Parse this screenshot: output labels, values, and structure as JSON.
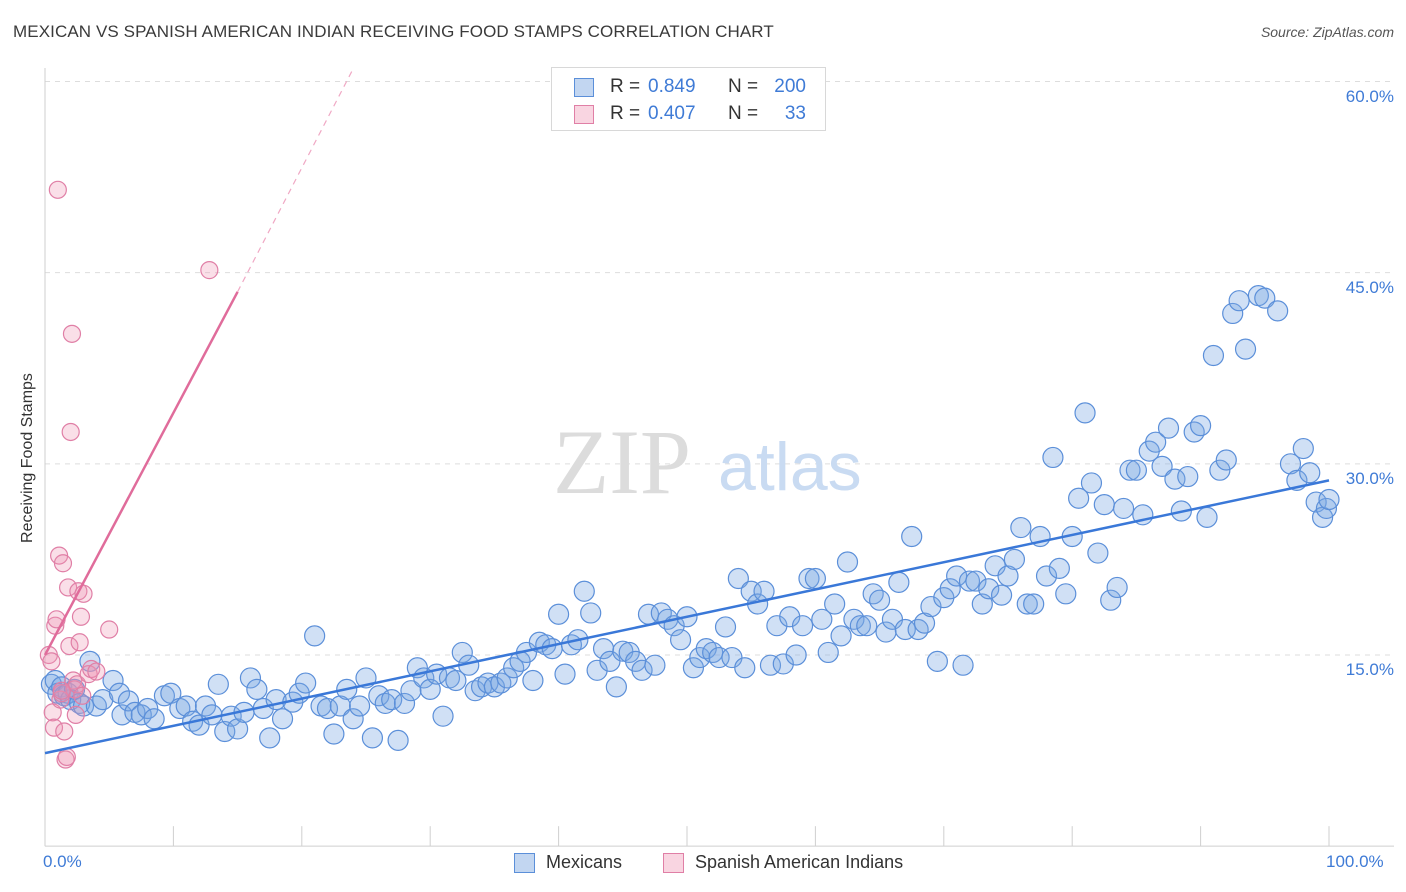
{
  "header": {
    "title": "MEXICAN VS SPANISH AMERICAN INDIAN RECEIVING FOOD STAMPS CORRELATION CHART",
    "source": "Source: ZipAtlas.com"
  },
  "watermark": {
    "zip": "ZIP",
    "atlas": "atlas"
  },
  "colors": {
    "blue": "#3a78d8",
    "blue_fill": "rgba(120,165,225,0.35)",
    "blue_stroke": "#5b8fd9",
    "pink": "#e06c9b",
    "pink_fill": "rgba(240,150,180,0.30)",
    "pink_stroke": "#e07fa6",
    "tick_text": "#3f7bd6"
  },
  "legend_top": {
    "rows": [
      {
        "r_label": "R =",
        "r_value": "0.849",
        "n_label": "N =",
        "n_value": "200",
        "color": "blue"
      },
      {
        "r_label": "R =",
        "r_value": "0.407",
        "n_label": "N =",
        "n_value": "33",
        "color": "pink"
      }
    ]
  },
  "legend_bottom": {
    "items": [
      {
        "label": "Mexicans",
        "color": "blue"
      },
      {
        "label": "Spanish American Indians",
        "color": "pink"
      }
    ]
  },
  "chart_data": {
    "type": "scatter",
    "title": "MEXICAN VS SPANISH AMERICAN INDIAN RECEIVING FOOD STAMPS CORRELATION CHART",
    "xlabel": "",
    "ylabel": "Receiving Food Stamps",
    "xlim": [
      0,
      100
    ],
    "ylim": [
      0,
      62
    ],
    "x_tick_labels": [
      "0.0%",
      "100.0%"
    ],
    "y_ticks": [
      15,
      30,
      45,
      60
    ],
    "y_tick_labels": [
      "15.0%",
      "30.0%",
      "45.0%",
      "60.0%"
    ],
    "grid": "dashed horizontal",
    "legend_position": "top-center",
    "series": [
      {
        "name": "Mexicans",
        "color": "blue",
        "r": 0.849,
        "n": 200,
        "trend": {
          "x": [
            0,
            100
          ],
          "y": [
            7.3,
            28.7
          ]
        },
        "points": [
          [
            0.5,
            12.7
          ],
          [
            0.8,
            13.0
          ],
          [
            1.0,
            12.0
          ],
          [
            1.3,
            12.5
          ],
          [
            1.5,
            11.8
          ],
          [
            1.8,
            12.0
          ],
          [
            2.0,
            11.5
          ],
          [
            2.3,
            12.3
          ],
          [
            2.7,
            11.2
          ],
          [
            3.0,
            11.0
          ],
          [
            3.5,
            14.5
          ],
          [
            4.0,
            11.0
          ],
          [
            4.5,
            11.5
          ],
          [
            5.3,
            13.0
          ],
          [
            5.8,
            12.0
          ],
          [
            6.0,
            10.3
          ],
          [
            6.5,
            11.4
          ],
          [
            7.0,
            10.5
          ],
          [
            7.5,
            10.3
          ],
          [
            8.0,
            10.8
          ],
          [
            8.5,
            10.0
          ],
          [
            9.3,
            11.8
          ],
          [
            9.8,
            12.0
          ],
          [
            10.5,
            10.8
          ],
          [
            11.0,
            11.0
          ],
          [
            11.5,
            9.8
          ],
          [
            12.0,
            9.5
          ],
          [
            12.5,
            11.0
          ],
          [
            13.0,
            10.3
          ],
          [
            13.5,
            12.7
          ],
          [
            14.0,
            9.0
          ],
          [
            14.5,
            10.2
          ],
          [
            15.0,
            9.2
          ],
          [
            15.5,
            10.5
          ],
          [
            16.0,
            13.2
          ],
          [
            16.5,
            12.3
          ],
          [
            17.0,
            10.8
          ],
          [
            17.5,
            8.5
          ],
          [
            18.0,
            11.5
          ],
          [
            18.5,
            10.0
          ],
          [
            19.3,
            11.3
          ],
          [
            19.8,
            12.0
          ],
          [
            20.3,
            12.8
          ],
          [
            21.0,
            16.5
          ],
          [
            21.5,
            11.0
          ],
          [
            22.0,
            10.8
          ],
          [
            22.5,
            8.8
          ],
          [
            23.0,
            11.0
          ],
          [
            23.5,
            12.3
          ],
          [
            24.0,
            10.0
          ],
          [
            24.5,
            11.0
          ],
          [
            25.0,
            13.2
          ],
          [
            25.5,
            8.5
          ],
          [
            26.0,
            11.8
          ],
          [
            26.5,
            11.2
          ],
          [
            27.0,
            11.5
          ],
          [
            27.5,
            8.3
          ],
          [
            28.0,
            11.2
          ],
          [
            28.5,
            12.2
          ],
          [
            29.0,
            14.0
          ],
          [
            29.5,
            13.2
          ],
          [
            30.0,
            12.3
          ],
          [
            30.5,
            13.5
          ],
          [
            31.0,
            10.2
          ],
          [
            31.5,
            13.2
          ],
          [
            32.0,
            13.0
          ],
          [
            32.5,
            15.2
          ],
          [
            33.0,
            14.2
          ],
          [
            33.5,
            12.2
          ],
          [
            34.0,
            12.5
          ],
          [
            34.5,
            12.8
          ],
          [
            35.0,
            12.5
          ],
          [
            35.5,
            12.8
          ],
          [
            36.0,
            13.2
          ],
          [
            36.5,
            14.0
          ],
          [
            37.0,
            14.5
          ],
          [
            37.5,
            15.2
          ],
          [
            38.0,
            13.0
          ],
          [
            38.5,
            16.0
          ],
          [
            39.0,
            15.8
          ],
          [
            39.5,
            15.5
          ],
          [
            40.0,
            18.2
          ],
          [
            40.5,
            13.5
          ],
          [
            41.0,
            15.8
          ],
          [
            41.5,
            16.2
          ],
          [
            42.0,
            20.0
          ],
          [
            42.5,
            18.3
          ],
          [
            43.0,
            13.8
          ],
          [
            43.5,
            15.5
          ],
          [
            44.0,
            14.5
          ],
          [
            44.5,
            12.5
          ],
          [
            45.0,
            15.3
          ],
          [
            45.5,
            15.2
          ],
          [
            46.0,
            14.5
          ],
          [
            46.5,
            13.8
          ],
          [
            47.0,
            18.2
          ],
          [
            47.5,
            14.2
          ],
          [
            48.0,
            18.3
          ],
          [
            48.5,
            17.8
          ],
          [
            49.0,
            17.3
          ],
          [
            49.5,
            16.2
          ],
          [
            50.0,
            18.0
          ],
          [
            50.5,
            14.0
          ],
          [
            51.0,
            14.8
          ],
          [
            51.5,
            15.5
          ],
          [
            52.0,
            15.2
          ],
          [
            52.5,
            14.8
          ],
          [
            53.0,
            17.2
          ],
          [
            53.5,
            14.8
          ],
          [
            54.0,
            21.0
          ],
          [
            54.5,
            14.0
          ],
          [
            55.0,
            20.0
          ],
          [
            55.5,
            19.0
          ],
          [
            56.0,
            20.0
          ],
          [
            56.5,
            14.2
          ],
          [
            57.0,
            17.3
          ],
          [
            57.5,
            14.3
          ],
          [
            58.0,
            18.0
          ],
          [
            58.5,
            15.0
          ],
          [
            59.0,
            17.3
          ],
          [
            59.5,
            21.0
          ],
          [
            60.0,
            21.0
          ],
          [
            60.5,
            17.8
          ],
          [
            61.0,
            15.2
          ],
          [
            61.5,
            19.0
          ],
          [
            62.0,
            16.5
          ],
          [
            62.5,
            22.3
          ],
          [
            63.0,
            17.8
          ],
          [
            63.5,
            17.3
          ],
          [
            64.0,
            17.3
          ],
          [
            64.5,
            19.8
          ],
          [
            65.0,
            19.3
          ],
          [
            65.5,
            16.8
          ],
          [
            66.0,
            17.8
          ],
          [
            66.5,
            20.7
          ],
          [
            67.0,
            17.0
          ],
          [
            67.5,
            24.3
          ],
          [
            68.0,
            17.0
          ],
          [
            68.5,
            17.5
          ],
          [
            69.0,
            18.8
          ],
          [
            69.5,
            14.5
          ],
          [
            70.0,
            19.5
          ],
          [
            70.5,
            20.2
          ],
          [
            71.0,
            21.2
          ],
          [
            71.5,
            14.2
          ],
          [
            72.0,
            20.8
          ],
          [
            72.5,
            20.8
          ],
          [
            73.0,
            19.0
          ],
          [
            73.5,
            20.2
          ],
          [
            74.0,
            22.0
          ],
          [
            74.5,
            19.7
          ],
          [
            75.0,
            21.2
          ],
          [
            75.5,
            22.5
          ],
          [
            76.0,
            25.0
          ],
          [
            76.5,
            19.0
          ],
          [
            77.0,
            19.0
          ],
          [
            77.5,
            24.3
          ],
          [
            78.0,
            21.2
          ],
          [
            78.5,
            30.5
          ],
          [
            79.0,
            21.8
          ],
          [
            79.5,
            19.8
          ],
          [
            80.0,
            24.3
          ],
          [
            80.5,
            27.3
          ],
          [
            81.0,
            34.0
          ],
          [
            81.5,
            28.5
          ],
          [
            82.0,
            23.0
          ],
          [
            82.5,
            26.8
          ],
          [
            83.0,
            19.3
          ],
          [
            83.5,
            20.3
          ],
          [
            84.0,
            26.5
          ],
          [
            84.5,
            29.5
          ],
          [
            85.0,
            29.5
          ],
          [
            85.5,
            26.0
          ],
          [
            86.0,
            31.0
          ],
          [
            86.5,
            31.7
          ],
          [
            87.0,
            29.8
          ],
          [
            87.5,
            32.8
          ],
          [
            88.0,
            28.8
          ],
          [
            88.5,
            26.3
          ],
          [
            89.0,
            29.0
          ],
          [
            89.5,
            32.5
          ],
          [
            90.0,
            33.0
          ],
          [
            90.5,
            25.8
          ],
          [
            91.0,
            38.5
          ],
          [
            91.5,
            29.5
          ],
          [
            92.0,
            30.3
          ],
          [
            92.5,
            41.8
          ],
          [
            93.0,
            42.8
          ],
          [
            93.5,
            39.0
          ],
          [
            94.5,
            43.2
          ],
          [
            95.0,
            43.0
          ],
          [
            96.0,
            42.0
          ],
          [
            97.0,
            30.0
          ],
          [
            97.5,
            28.7
          ],
          [
            98.0,
            31.2
          ],
          [
            98.5,
            29.3
          ],
          [
            99.0,
            27.0
          ],
          [
            99.5,
            25.8
          ],
          [
            99.8,
            26.5
          ],
          [
            100.0,
            27.2
          ]
        ]
      },
      {
        "name": "Spanish American Indians",
        "color": "pink",
        "r": 0.407,
        "n": 33,
        "trend": {
          "x": [
            0,
            15
          ],
          "y": [
            15.0,
            43.5
          ]
        },
        "trend_extension": {
          "x": [
            15,
            24
          ],
          "y": [
            43.5,
            61.0
          ]
        },
        "points": [
          [
            0.3,
            15.0
          ],
          [
            0.5,
            14.5
          ],
          [
            0.6,
            10.5
          ],
          [
            0.7,
            9.3
          ],
          [
            0.8,
            17.3
          ],
          [
            0.9,
            17.8
          ],
          [
            1.0,
            51.5
          ],
          [
            1.1,
            22.8
          ],
          [
            1.2,
            11.5
          ],
          [
            1.3,
            12.0
          ],
          [
            1.4,
            22.2
          ],
          [
            1.5,
            9.0
          ],
          [
            1.6,
            6.8
          ],
          [
            1.7,
            7.0
          ],
          [
            1.8,
            20.3
          ],
          [
            1.9,
            15.7
          ],
          [
            2.0,
            32.5
          ],
          [
            2.1,
            40.2
          ],
          [
            2.2,
            13.0
          ],
          [
            2.3,
            12.3
          ],
          [
            2.4,
            10.3
          ],
          [
            2.5,
            12.7
          ],
          [
            2.6,
            20.0
          ],
          [
            2.7,
            16.0
          ],
          [
            2.8,
            18.0
          ],
          [
            2.9,
            11.8
          ],
          [
            3.0,
            19.8
          ],
          [
            3.4,
            13.5
          ],
          [
            3.6,
            13.9
          ],
          [
            4.0,
            13.7
          ],
          [
            5.0,
            17.0
          ],
          [
            12.8,
            45.2
          ],
          [
            1.3,
            12.2
          ]
        ]
      }
    ]
  }
}
